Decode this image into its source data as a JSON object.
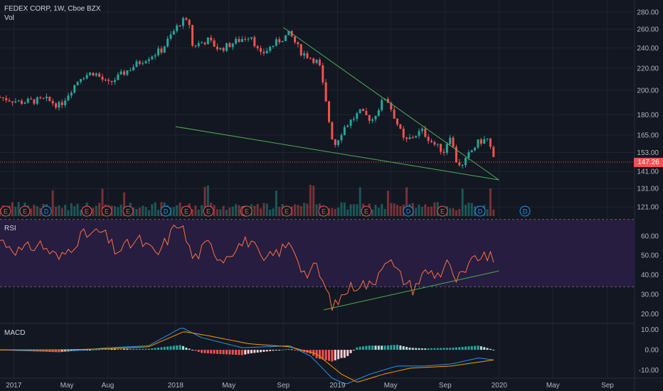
{
  "header": {
    "symbol_line": "FEDEX CORP, 1W, Cboe BZX",
    "vol_label": "Vol",
    "rsi_label": "RSI",
    "macd_label": "MACD"
  },
  "last_price": "147.26",
  "colors": {
    "background": "#131722",
    "rsi_band": "#2a1f45",
    "up": "#26a69a",
    "down": "#ef5350",
    "trendline": "#4caf50",
    "rsi_line": "#ff7043",
    "macd_line": "#2196f3",
    "signal_line": "#ff9800",
    "grid": "#1f2431"
  },
  "chart_data": [
    {
      "type": "candlestick",
      "yscale": "log",
      "ylim": [
        116,
        286
      ],
      "y_ticks": [
        "280.00",
        "260.00",
        "240.00",
        "220.00",
        "200.00",
        "180.00",
        "165.00",
        "153.00",
        "141.00",
        "131.00",
        "121.00"
      ],
      "x_ticks": [
        "2017",
        "May",
        "Aug",
        "2018",
        "May",
        "Sep",
        "2019",
        "May",
        "Sep",
        "2020",
        "May",
        "Sep"
      ],
      "xlim": [
        "2016-12-01",
        "2020-11-01"
      ],
      "price_anchors": [
        [
          "2016-12-01",
          194
        ],
        [
          "2017-01-15",
          190
        ],
        [
          "2017-03-15",
          192
        ],
        [
          "2017-04-15",
          187
        ],
        [
          "2017-06-01",
          212
        ],
        [
          "2017-07-01",
          216
        ],
        [
          "2017-08-01",
          205
        ],
        [
          "2017-09-15",
          218
        ],
        [
          "2017-10-20",
          228
        ],
        [
          "2017-12-01",
          238
        ],
        [
          "2017-12-20",
          252
        ],
        [
          "2018-01-15",
          270
        ],
        [
          "2018-02-01",
          266
        ],
        [
          "2018-02-08",
          242
        ],
        [
          "2018-03-15",
          248
        ],
        [
          "2018-04-10",
          238
        ],
        [
          "2018-05-10",
          245
        ],
        [
          "2018-06-20",
          254
        ],
        [
          "2018-07-10",
          232
        ],
        [
          "2018-08-20",
          247
        ],
        [
          "2018-09-15",
          255
        ],
        [
          "2018-10-10",
          236
        ],
        [
          "2018-11-20",
          225
        ],
        [
          "2018-12-10",
          180
        ],
        [
          "2018-12-24",
          157
        ],
        [
          "2019-01-15",
          170
        ],
        [
          "2019-02-20",
          182
        ],
        [
          "2019-03-20",
          176
        ],
        [
          "2019-04-20",
          195
        ],
        [
          "2019-05-10",
          178
        ],
        [
          "2019-06-01",
          160
        ],
        [
          "2019-07-10",
          168
        ],
        [
          "2019-08-05",
          159
        ],
        [
          "2019-09-01",
          153
        ],
        [
          "2019-09-10",
          168
        ],
        [
          "2019-09-25",
          148
        ],
        [
          "2019-10-10",
          144
        ],
        [
          "2019-10-25",
          152
        ],
        [
          "2019-11-15",
          160
        ],
        [
          "2019-12-05",
          162
        ],
        [
          "2019-12-13",
          155
        ],
        [
          "2019-12-20",
          147.26
        ]
      ],
      "trendlines": [
        {
          "name": "upper",
          "from": [
            "2018-09-01",
            262
          ],
          "to": [
            "2019-12-31",
            136
          ]
        },
        {
          "name": "lower",
          "from": [
            "2018-01-01",
            171
          ],
          "to": [
            "2019-12-31",
            136
          ]
        }
      ],
      "earnings_markers": [
        "E",
        "E",
        "D",
        "E",
        "E",
        "E",
        "E",
        "D",
        "E",
        "E",
        "E",
        "E",
        "E",
        "E",
        "E",
        "D",
        "E"
      ],
      "dividend_markers": [
        "D",
        "D",
        "D"
      ]
    },
    {
      "type": "line",
      "name": "RSI",
      "ylim": [
        15,
        68
      ],
      "y_ticks": [
        "60.00",
        "50.00",
        "40.00",
        "30.00",
        "20.00"
      ],
      "bands": [
        30,
        70
      ],
      "values_anchors": [
        [
          "2016-12-01",
          58
        ],
        [
          "2017-01-15",
          52
        ],
        [
          "2017-03-01",
          56
        ],
        [
          "2017-04-15",
          48
        ],
        [
          "2017-06-01",
          60
        ],
        [
          "2017-07-20",
          62
        ],
        [
          "2017-08-20",
          52
        ],
        [
          "2017-10-10",
          58
        ],
        [
          "2017-11-20",
          50
        ],
        [
          "2018-01-10",
          68
        ],
        [
          "2018-02-10",
          48
        ],
        [
          "2018-03-15",
          56
        ],
        [
          "2018-04-15",
          48
        ],
        [
          "2018-05-20",
          55
        ],
        [
          "2018-06-20",
          58
        ],
        [
          "2018-07-15",
          46
        ],
        [
          "2018-08-20",
          52
        ],
        [
          "2018-09-20",
          56
        ],
        [
          "2018-10-20",
          40
        ],
        [
          "2018-11-15",
          44
        ],
        [
          "2018-12-10",
          30
        ],
        [
          "2018-12-24",
          23
        ],
        [
          "2019-01-20",
          32
        ],
        [
          "2019-02-20",
          36
        ],
        [
          "2019-03-20",
          34
        ],
        [
          "2019-04-20",
          50
        ],
        [
          "2019-05-20",
          40
        ],
        [
          "2019-06-20",
          33
        ],
        [
          "2019-07-20",
          42
        ],
        [
          "2019-08-20",
          40
        ],
        [
          "2019-09-05",
          48
        ],
        [
          "2019-09-20",
          37
        ],
        [
          "2019-10-15",
          40
        ],
        [
          "2019-11-10",
          50
        ],
        [
          "2019-12-01",
          48
        ],
        [
          "2019-12-10",
          52
        ],
        [
          "2019-12-20",
          42
        ]
      ],
      "trendline": {
        "from": [
          "2018-12-01",
          22
        ],
        "to": [
          "2019-12-31",
          42
        ]
      }
    },
    {
      "type": "line",
      "name": "MACD",
      "ylim": [
        -14,
        13
      ],
      "y_ticks": [
        "10.00",
        "0.00",
        "-10.00"
      ],
      "macd_anchors": [
        [
          "2016-12-01",
          0
        ],
        [
          "2017-04-15",
          -1
        ],
        [
          "2017-08-01",
          1
        ],
        [
          "2017-11-01",
          2
        ],
        [
          "2018-01-15",
          11
        ],
        [
          "2018-03-01",
          6
        ],
        [
          "2018-06-01",
          1
        ],
        [
          "2018-09-15",
          2
        ],
        [
          "2018-11-01",
          -3
        ],
        [
          "2018-12-20",
          -14
        ],
        [
          "2019-01-20",
          -17
        ],
        [
          "2019-03-15",
          -12
        ],
        [
          "2019-05-15",
          -8
        ],
        [
          "2019-07-15",
          -8
        ],
        [
          "2019-09-15",
          -7
        ],
        [
          "2019-11-15",
          -4
        ],
        [
          "2019-12-20",
          -5
        ]
      ],
      "signal_anchors": [
        [
          "2016-12-01",
          0
        ],
        [
          "2017-04-15",
          0
        ],
        [
          "2017-08-01",
          0.5
        ],
        [
          "2017-11-01",
          1.5
        ],
        [
          "2018-01-20",
          9
        ],
        [
          "2018-03-15",
          7
        ],
        [
          "2018-06-15",
          3
        ],
        [
          "2018-09-15",
          1.5
        ],
        [
          "2018-11-15",
          -2
        ],
        [
          "2019-01-10",
          -12
        ],
        [
          "2019-02-15",
          -16
        ],
        [
          "2019-04-15",
          -12
        ],
        [
          "2019-06-15",
          -9
        ],
        [
          "2019-09-15",
          -8
        ],
        [
          "2019-12-20",
          -5
        ]
      ]
    }
  ]
}
